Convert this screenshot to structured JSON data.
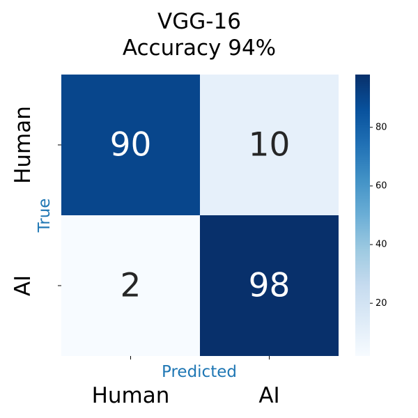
{
  "chart_data": {
    "type": "heatmap",
    "title_lines": [
      "VGG-16",
      "Accuracy 94%"
    ],
    "xlabel": "Predicted",
    "ylabel": "True",
    "x_categories": [
      "Human",
      "AI"
    ],
    "y_categories": [
      "Human",
      "AI"
    ],
    "matrix": [
      [
        90,
        10
      ],
      [
        2,
        98
      ]
    ],
    "colormap": "Blues",
    "vmin": 2,
    "vmax": 98,
    "colorbar_ticks": [
      20,
      40,
      60,
      80
    ],
    "grid": false,
    "label_color": "#1f77b4"
  }
}
